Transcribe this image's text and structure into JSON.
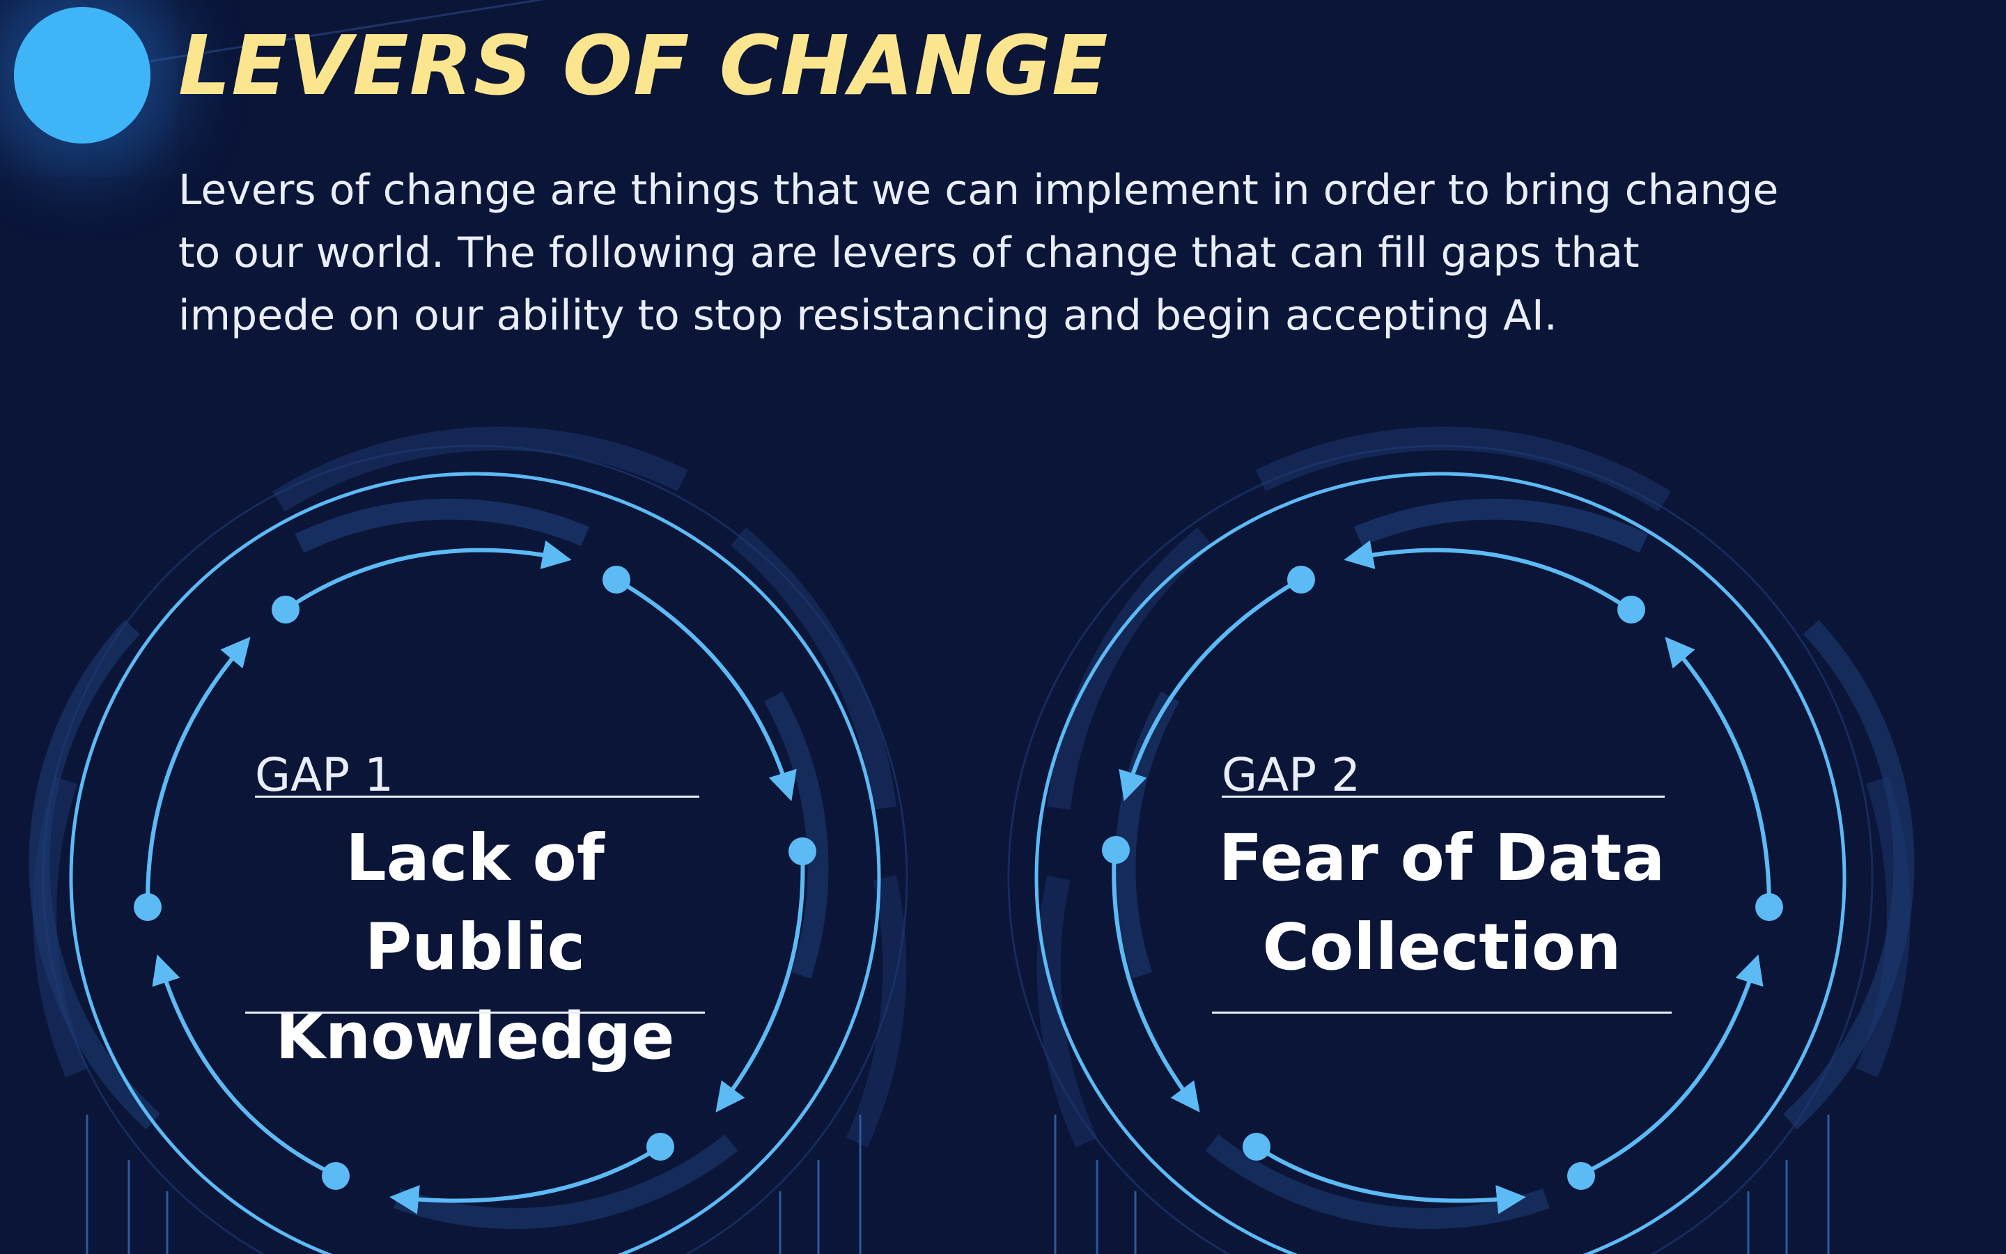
{
  "header": {
    "title": "LEVERS OF CHANGE",
    "intro": "Levers of change are things that we can implement in order to bring change to our world. The following are levers of change that can fill gaps that impede on our ability to stop resistancing and begin accepting AI."
  },
  "gaps": [
    {
      "label": "GAP 1",
      "title": "Lack of Public Knowledge"
    },
    {
      "label": "GAP 2",
      "title": "Fear of Data Collection"
    }
  ],
  "colors": {
    "background": "#0a1538",
    "accent": "#5cbaf5",
    "title": "#fbe58e",
    "text": "#e9eef8"
  }
}
